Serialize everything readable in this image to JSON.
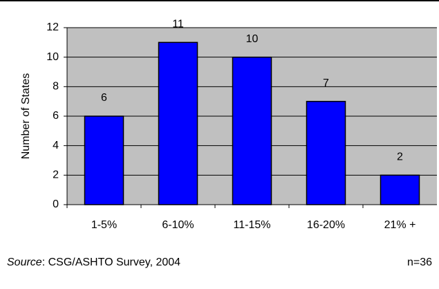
{
  "chart_data": {
    "type": "bar",
    "y_label": "Number of States",
    "categories": [
      "1-5%",
      "6-10%",
      "11-15%",
      "16-20%",
      "21% +"
    ],
    "values": [
      6,
      11,
      10,
      7,
      2
    ],
    "color": "#0000ff",
    "ylim": [
      0,
      12
    ],
    "yticks": [
      0,
      2,
      4,
      6,
      8,
      10,
      12
    ],
    "grid": true,
    "source_label": "Source",
    "source_text": ": CSG/ASHTO Survey, 2004",
    "note": "n=36"
  }
}
